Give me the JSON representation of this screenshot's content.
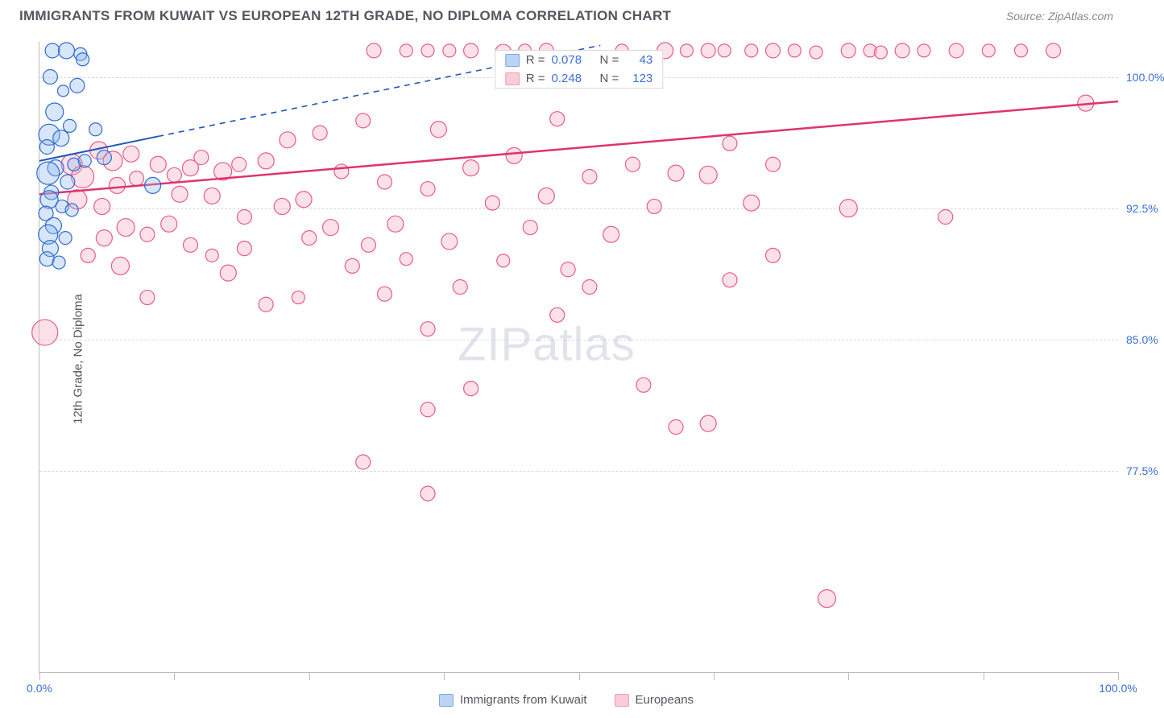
{
  "header": {
    "title": "IMMIGRANTS FROM KUWAIT VS EUROPEAN 12TH GRADE, NO DIPLOMA CORRELATION CHART",
    "source": "Source: ZipAtlas.com"
  },
  "watermark": {
    "part1": "ZIP",
    "part2": "atlas"
  },
  "chart": {
    "type": "scatter",
    "ylabel": "12th Grade, No Diploma",
    "background_color": "#ffffff",
    "grid_color": "#d8d8dc",
    "axis_color": "#bbbbc0",
    "tick_label_color": "#3b6fd6",
    "axis_label_color": "#555560",
    "xlim": [
      0,
      100
    ],
    "ylim": [
      66,
      102
    ],
    "x_tick_positions": [
      0,
      12.5,
      25,
      37.5,
      50,
      62.5,
      75,
      87.5,
      100
    ],
    "x_major_labels": {
      "0": "0.0%",
      "100": "100.0%"
    },
    "y_ticks": [
      {
        "v": 100.0,
        "label": "100.0%"
      },
      {
        "v": 92.5,
        "label": "92.5%"
      },
      {
        "v": 85.0,
        "label": "85.0%"
      },
      {
        "v": 77.5,
        "label": "77.5%"
      }
    ],
    "legend_top": {
      "rows": [
        {
          "series": "blue",
          "r_label": "R =",
          "r": "0.078",
          "n_label": "N =",
          "n": "43"
        },
        {
          "series": "pink",
          "r_label": "R =",
          "r": "0.248",
          "n_label": "N =",
          "n": "123"
        }
      ]
    },
    "legend_bottom": {
      "items": [
        {
          "series": "blue",
          "label": "Immigrants from Kuwait"
        },
        {
          "series": "pink",
          "label": "Europeans"
        }
      ]
    },
    "series": {
      "blue": {
        "name": "Immigrants from Kuwait",
        "fill": "#8fb6ee",
        "stroke": "#2f6bd0",
        "fill_opacity": 0.35,
        "trend_solid": {
          "x1": 0,
          "y1": 95.2,
          "x2": 11,
          "y2": 96.6
        },
        "trend_dash": {
          "x1": 11,
          "y1": 96.6,
          "x2": 52,
          "y2": 101.8
        },
        "trend_color": "#1f58b8",
        "trend_width": 2,
        "points": [
          {
            "x": 1.2,
            "y": 101.5,
            "r": 9
          },
          {
            "x": 2.5,
            "y": 101.5,
            "r": 10
          },
          {
            "x": 3.8,
            "y": 101.3,
            "r": 8
          },
          {
            "x": 1.0,
            "y": 100.0,
            "r": 9
          },
          {
            "x": 2.2,
            "y": 99.2,
            "r": 7
          },
          {
            "x": 3.5,
            "y": 99.5,
            "r": 9
          },
          {
            "x": 1.4,
            "y": 98.0,
            "r": 11
          },
          {
            "x": 2.8,
            "y": 97.2,
            "r": 8
          },
          {
            "x": 0.9,
            "y": 96.7,
            "r": 13
          },
          {
            "x": 2.0,
            "y": 96.5,
            "r": 10
          },
          {
            "x": 0.7,
            "y": 96.0,
            "r": 9
          },
          {
            "x": 3.2,
            "y": 95.0,
            "r": 8
          },
          {
            "x": 1.5,
            "y": 94.8,
            "r": 10
          },
          {
            "x": 0.8,
            "y": 94.5,
            "r": 14
          },
          {
            "x": 2.6,
            "y": 94.0,
            "r": 9
          },
          {
            "x": 4.2,
            "y": 95.2,
            "r": 8
          },
          {
            "x": 1.1,
            "y": 93.4,
            "r": 9
          },
          {
            "x": 0.9,
            "y": 93.0,
            "r": 11
          },
          {
            "x": 2.1,
            "y": 92.6,
            "r": 8
          },
          {
            "x": 0.6,
            "y": 92.2,
            "r": 9
          },
          {
            "x": 3.0,
            "y": 92.4,
            "r": 8
          },
          {
            "x": 1.3,
            "y": 91.5,
            "r": 10
          },
          {
            "x": 0.8,
            "y": 91.0,
            "r": 12
          },
          {
            "x": 2.4,
            "y": 90.8,
            "r": 8
          },
          {
            "x": 1.0,
            "y": 90.2,
            "r": 10
          },
          {
            "x": 0.7,
            "y": 89.6,
            "r": 9
          },
          {
            "x": 1.8,
            "y": 89.4,
            "r": 8
          },
          {
            "x": 10.5,
            "y": 93.8,
            "r": 10
          },
          {
            "x": 5.2,
            "y": 97.0,
            "r": 8
          },
          {
            "x": 6.0,
            "y": 95.4,
            "r": 9
          },
          {
            "x": 4.0,
            "y": 101.0,
            "r": 8
          }
        ]
      },
      "pink": {
        "name": "Europeans",
        "fill": "#f7a9bf",
        "stroke": "#e85b85",
        "fill_opacity": 0.35,
        "trend_solid": {
          "x1": 0,
          "y1": 93.3,
          "x2": 100,
          "y2": 98.6
        },
        "trend_color": "#e0336e",
        "trend_width": 2.5,
        "points": [
          {
            "x": 31,
            "y": 101.5,
            "r": 9
          },
          {
            "x": 34,
            "y": 101.5,
            "r": 8
          },
          {
            "x": 36,
            "y": 101.5,
            "r": 8
          },
          {
            "x": 38,
            "y": 101.5,
            "r": 8
          },
          {
            "x": 40,
            "y": 101.5,
            "r": 9
          },
          {
            "x": 43,
            "y": 101.4,
            "r": 10
          },
          {
            "x": 45,
            "y": 101.5,
            "r": 8
          },
          {
            "x": 47,
            "y": 101.5,
            "r": 9
          },
          {
            "x": 54,
            "y": 101.5,
            "r": 8
          },
          {
            "x": 58,
            "y": 101.5,
            "r": 10
          },
          {
            "x": 60,
            "y": 101.5,
            "r": 8
          },
          {
            "x": 62,
            "y": 101.5,
            "r": 9
          },
          {
            "x": 63.5,
            "y": 101.5,
            "r": 8
          },
          {
            "x": 66,
            "y": 101.5,
            "r": 8
          },
          {
            "x": 68,
            "y": 101.5,
            "r": 9
          },
          {
            "x": 70,
            "y": 101.5,
            "r": 8
          },
          {
            "x": 75,
            "y": 101.5,
            "r": 9
          },
          {
            "x": 77,
            "y": 101.5,
            "r": 8
          },
          {
            "x": 80,
            "y": 101.5,
            "r": 9
          },
          {
            "x": 82,
            "y": 101.5,
            "r": 8
          },
          {
            "x": 85,
            "y": 101.5,
            "r": 9
          },
          {
            "x": 88,
            "y": 101.5,
            "r": 8
          },
          {
            "x": 91,
            "y": 101.5,
            "r": 8
          },
          {
            "x": 94,
            "y": 101.5,
            "r": 9
          },
          {
            "x": 97,
            "y": 98.5,
            "r": 10
          },
          {
            "x": 84,
            "y": 92.0,
            "r": 9
          },
          {
            "x": 75,
            "y": 92.5,
            "r": 11
          },
          {
            "x": 72,
            "y": 101.4,
            "r": 8
          },
          {
            "x": 78,
            "y": 101.4,
            "r": 8
          },
          {
            "x": 3,
            "y": 95.0,
            "r": 13
          },
          {
            "x": 5.5,
            "y": 95.8,
            "r": 11
          },
          {
            "x": 6.8,
            "y": 95.2,
            "r": 12
          },
          {
            "x": 8.5,
            "y": 95.6,
            "r": 10
          },
          {
            "x": 4.0,
            "y": 94.3,
            "r": 14
          },
          {
            "x": 7.2,
            "y": 93.8,
            "r": 10
          },
          {
            "x": 3.5,
            "y": 93.0,
            "r": 12
          },
          {
            "x": 5.8,
            "y": 92.6,
            "r": 10
          },
          {
            "x": 9.0,
            "y": 94.2,
            "r": 9
          },
          {
            "x": 11,
            "y": 95.0,
            "r": 10
          },
          {
            "x": 12.5,
            "y": 94.4,
            "r": 9
          },
          {
            "x": 14,
            "y": 94.8,
            "r": 10
          },
          {
            "x": 13,
            "y": 93.3,
            "r": 10
          },
          {
            "x": 15,
            "y": 95.4,
            "r": 9
          },
          {
            "x": 17,
            "y": 94.6,
            "r": 11
          },
          {
            "x": 18.5,
            "y": 95.0,
            "r": 9
          },
          {
            "x": 16,
            "y": 93.2,
            "r": 10
          },
          {
            "x": 19,
            "y": 92.0,
            "r": 9
          },
          {
            "x": 8,
            "y": 91.4,
            "r": 11
          },
          {
            "x": 6,
            "y": 90.8,
            "r": 10
          },
          {
            "x": 10,
            "y": 91.0,
            "r": 9
          },
          {
            "x": 12,
            "y": 91.6,
            "r": 10
          },
          {
            "x": 4.5,
            "y": 89.8,
            "r": 9
          },
          {
            "x": 7.5,
            "y": 89.2,
            "r": 11
          },
          {
            "x": 14,
            "y": 90.4,
            "r": 9
          },
          {
            "x": 16,
            "y": 89.8,
            "r": 8
          },
          {
            "x": 17.5,
            "y": 88.8,
            "r": 10
          },
          {
            "x": 19,
            "y": 90.2,
            "r": 9
          },
          {
            "x": 21,
            "y": 95.2,
            "r": 10
          },
          {
            "x": 22.5,
            "y": 92.6,
            "r": 10
          },
          {
            "x": 23,
            "y": 96.4,
            "r": 10
          },
          {
            "x": 24.5,
            "y": 93.0,
            "r": 10
          },
          {
            "x": 26,
            "y": 96.8,
            "r": 9
          },
          {
            "x": 25,
            "y": 90.8,
            "r": 9
          },
          {
            "x": 27,
            "y": 91.4,
            "r": 10
          },
          {
            "x": 28,
            "y": 94.6,
            "r": 9
          },
          {
            "x": 30,
            "y": 97.5,
            "r": 9
          },
          {
            "x": 29,
            "y": 89.2,
            "r": 9
          },
          {
            "x": 30.5,
            "y": 90.4,
            "r": 9
          },
          {
            "x": 33,
            "y": 91.6,
            "r": 10
          },
          {
            "x": 32,
            "y": 94.0,
            "r": 9
          },
          {
            "x": 34,
            "y": 89.6,
            "r": 8
          },
          {
            "x": 37,
            "y": 97.0,
            "r": 10
          },
          {
            "x": 36,
            "y": 93.6,
            "r": 9
          },
          {
            "x": 38,
            "y": 90.6,
            "r": 10
          },
          {
            "x": 40,
            "y": 94.8,
            "r": 10
          },
          {
            "x": 39,
            "y": 88.0,
            "r": 9
          },
          {
            "x": 42,
            "y": 92.8,
            "r": 9
          },
          {
            "x": 44,
            "y": 95.5,
            "r": 10
          },
          {
            "x": 43,
            "y": 89.5,
            "r": 8
          },
          {
            "x": 45.5,
            "y": 91.4,
            "r": 9
          },
          {
            "x": 48,
            "y": 97.6,
            "r": 9
          },
          {
            "x": 47,
            "y": 93.2,
            "r": 10
          },
          {
            "x": 49,
            "y": 89.0,
            "r": 9
          },
          {
            "x": 51,
            "y": 94.3,
            "r": 9
          },
          {
            "x": 53,
            "y": 91.0,
            "r": 10
          },
          {
            "x": 55,
            "y": 95.0,
            "r": 9
          },
          {
            "x": 57,
            "y": 92.6,
            "r": 9
          },
          {
            "x": 59,
            "y": 94.5,
            "r": 10
          },
          {
            "x": 62,
            "y": 94.4,
            "r": 11
          },
          {
            "x": 64,
            "y": 96.2,
            "r": 9
          },
          {
            "x": 66,
            "y": 92.8,
            "r": 10
          },
          {
            "x": 68,
            "y": 95.0,
            "r": 9
          },
          {
            "x": 0.5,
            "y": 85.4,
            "r": 16
          },
          {
            "x": 10,
            "y": 87.4,
            "r": 9
          },
          {
            "x": 21,
            "y": 87.0,
            "r": 9
          },
          {
            "x": 24,
            "y": 87.4,
            "r": 8
          },
          {
            "x": 32,
            "y": 87.6,
            "r": 9
          },
          {
            "x": 36,
            "y": 85.6,
            "r": 9
          },
          {
            "x": 40,
            "y": 82.2,
            "r": 9
          },
          {
            "x": 36,
            "y": 81.0,
            "r": 9
          },
          {
            "x": 48,
            "y": 86.4,
            "r": 9
          },
          {
            "x": 51,
            "y": 88.0,
            "r": 9
          },
          {
            "x": 56,
            "y": 82.4,
            "r": 9
          },
          {
            "x": 59,
            "y": 80.0,
            "r": 9
          },
          {
            "x": 62,
            "y": 80.2,
            "r": 10
          },
          {
            "x": 64,
            "y": 88.4,
            "r": 9
          },
          {
            "x": 68,
            "y": 89.8,
            "r": 9
          },
          {
            "x": 30,
            "y": 78.0,
            "r": 9
          },
          {
            "x": 36,
            "y": 76.2,
            "r": 9
          },
          {
            "x": 73,
            "y": 70.2,
            "r": 11
          }
        ]
      }
    }
  }
}
